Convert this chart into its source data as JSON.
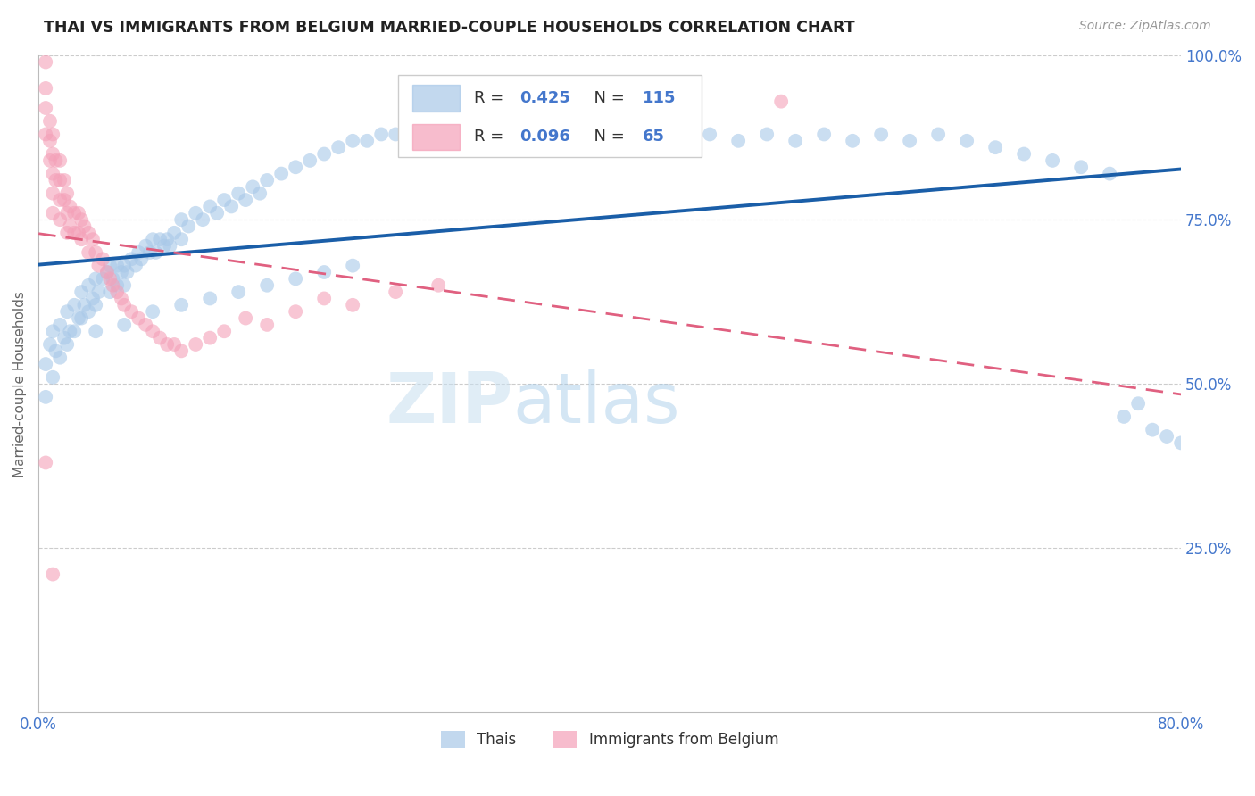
{
  "title": "THAI VS IMMIGRANTS FROM BELGIUM MARRIED-COUPLE HOUSEHOLDS CORRELATION CHART",
  "source": "Source: ZipAtlas.com",
  "ylabel": "Married-couple Households",
  "legend_label1": "Thais",
  "legend_label2": "Immigrants from Belgium",
  "R1": "0.425",
  "N1": "115",
  "R2": "0.096",
  "N2": "65",
  "color_blue": "#a8c8e8",
  "color_pink": "#f4a0b8",
  "line_blue": "#1a5ea8",
  "line_pink": "#e06080",
  "axis_color": "#4477cc",
  "background_color": "#ffffff",
  "watermark_zip": "ZIP",
  "watermark_atlas": "atlas",
  "xlim": [
    0.0,
    0.8
  ],
  "ylim": [
    0.0,
    1.0
  ],
  "thai_x": [
    0.005,
    0.005,
    0.008,
    0.01,
    0.01,
    0.012,
    0.015,
    0.015,
    0.018,
    0.02,
    0.02,
    0.022,
    0.025,
    0.025,
    0.028,
    0.03,
    0.03,
    0.032,
    0.035,
    0.035,
    0.038,
    0.04,
    0.04,
    0.042,
    0.045,
    0.048,
    0.05,
    0.05,
    0.052,
    0.055,
    0.055,
    0.058,
    0.06,
    0.06,
    0.062,
    0.065,
    0.068,
    0.07,
    0.072,
    0.075,
    0.078,
    0.08,
    0.082,
    0.085,
    0.088,
    0.09,
    0.092,
    0.095,
    0.1,
    0.1,
    0.105,
    0.11,
    0.115,
    0.12,
    0.125,
    0.13,
    0.135,
    0.14,
    0.145,
    0.15,
    0.155,
    0.16,
    0.17,
    0.18,
    0.19,
    0.2,
    0.21,
    0.22,
    0.23,
    0.24,
    0.25,
    0.26,
    0.27,
    0.28,
    0.29,
    0.3,
    0.31,
    0.32,
    0.33,
    0.35,
    0.37,
    0.39,
    0.41,
    0.43,
    0.45,
    0.47,
    0.49,
    0.51,
    0.53,
    0.55,
    0.57,
    0.59,
    0.61,
    0.63,
    0.65,
    0.67,
    0.69,
    0.71,
    0.73,
    0.75,
    0.76,
    0.77,
    0.78,
    0.79,
    0.8,
    0.04,
    0.06,
    0.08,
    0.1,
    0.12,
    0.14,
    0.16,
    0.18,
    0.2,
    0.22
  ],
  "thai_y": [
    0.53,
    0.48,
    0.56,
    0.58,
    0.51,
    0.55,
    0.59,
    0.54,
    0.57,
    0.61,
    0.56,
    0.58,
    0.62,
    0.58,
    0.6,
    0.64,
    0.6,
    0.62,
    0.65,
    0.61,
    0.63,
    0.66,
    0.62,
    0.64,
    0.66,
    0.67,
    0.68,
    0.64,
    0.66,
    0.68,
    0.65,
    0.67,
    0.68,
    0.65,
    0.67,
    0.69,
    0.68,
    0.7,
    0.69,
    0.71,
    0.7,
    0.72,
    0.7,
    0.72,
    0.71,
    0.72,
    0.71,
    0.73,
    0.75,
    0.72,
    0.74,
    0.76,
    0.75,
    0.77,
    0.76,
    0.78,
    0.77,
    0.79,
    0.78,
    0.8,
    0.79,
    0.81,
    0.82,
    0.83,
    0.84,
    0.85,
    0.86,
    0.87,
    0.87,
    0.88,
    0.88,
    0.89,
    0.9,
    0.87,
    0.88,
    0.88,
    0.89,
    0.9,
    0.89,
    0.87,
    0.88,
    0.87,
    0.88,
    0.89,
    0.87,
    0.88,
    0.87,
    0.88,
    0.87,
    0.88,
    0.87,
    0.88,
    0.87,
    0.88,
    0.87,
    0.86,
    0.85,
    0.84,
    0.83,
    0.82,
    0.45,
    0.47,
    0.43,
    0.42,
    0.41,
    0.58,
    0.59,
    0.61,
    0.62,
    0.63,
    0.64,
    0.65,
    0.66,
    0.67,
    0.68
  ],
  "belgium_x": [
    0.005,
    0.005,
    0.005,
    0.005,
    0.008,
    0.008,
    0.008,
    0.01,
    0.01,
    0.01,
    0.01,
    0.01,
    0.012,
    0.012,
    0.015,
    0.015,
    0.015,
    0.015,
    0.018,
    0.018,
    0.02,
    0.02,
    0.02,
    0.022,
    0.022,
    0.025,
    0.025,
    0.028,
    0.028,
    0.03,
    0.03,
    0.032,
    0.035,
    0.035,
    0.038,
    0.04,
    0.042,
    0.045,
    0.048,
    0.05,
    0.052,
    0.055,
    0.058,
    0.06,
    0.065,
    0.07,
    0.075,
    0.08,
    0.085,
    0.09,
    0.095,
    0.1,
    0.11,
    0.12,
    0.13,
    0.145,
    0.16,
    0.18,
    0.2,
    0.22,
    0.25,
    0.28,
    0.52,
    0.005,
    0.01
  ],
  "belgium_y": [
    0.99,
    0.95,
    0.92,
    0.88,
    0.9,
    0.87,
    0.84,
    0.88,
    0.85,
    0.82,
    0.79,
    0.76,
    0.84,
    0.81,
    0.84,
    0.81,
    0.78,
    0.75,
    0.81,
    0.78,
    0.79,
    0.76,
    0.73,
    0.77,
    0.74,
    0.76,
    0.73,
    0.76,
    0.73,
    0.75,
    0.72,
    0.74,
    0.73,
    0.7,
    0.72,
    0.7,
    0.68,
    0.69,
    0.67,
    0.66,
    0.65,
    0.64,
    0.63,
    0.62,
    0.61,
    0.6,
    0.59,
    0.58,
    0.57,
    0.56,
    0.56,
    0.55,
    0.56,
    0.57,
    0.58,
    0.6,
    0.59,
    0.61,
    0.63,
    0.62,
    0.64,
    0.65,
    0.93,
    0.38,
    0.21
  ]
}
